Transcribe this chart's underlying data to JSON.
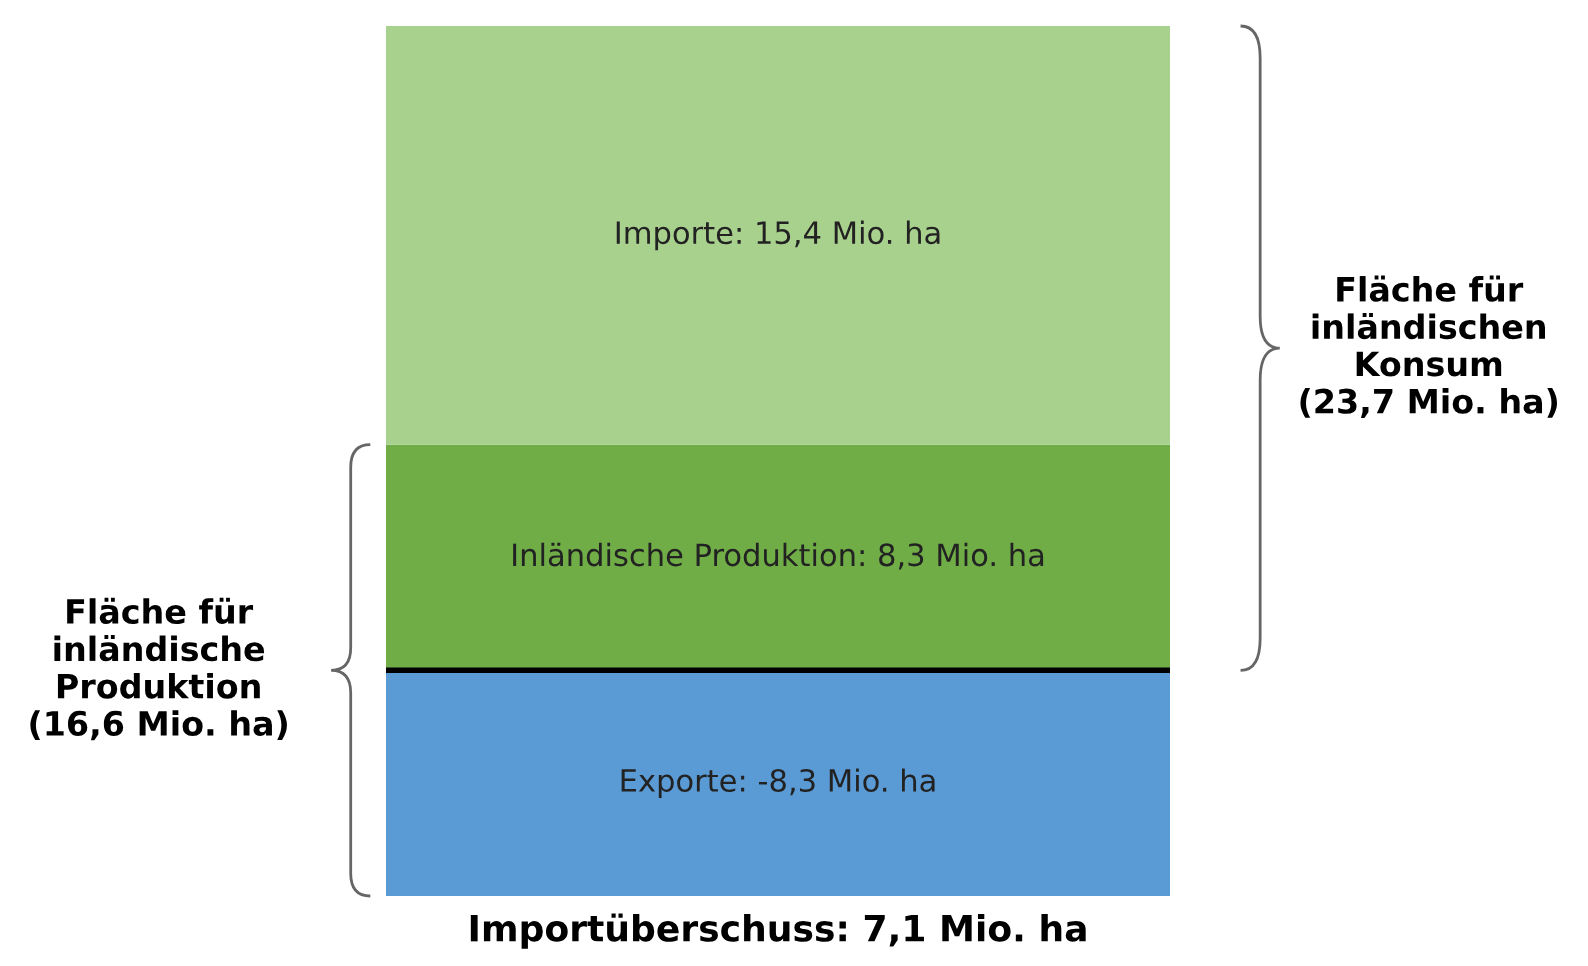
{
  "chart_data": {
    "type": "bar",
    "stacked": true,
    "categories": [
      null
    ],
    "series": [
      {
        "color": "#70ad47",
        "values": [
          8.3
        ],
        "value_labels": [
          "Inländische Produktion: 8,3 Mio. ha"
        ]
      },
      {
        "color": "#a9d18e",
        "values": [
          15.4
        ],
        "value_labels": [
          "Importe: 15,4 Mio. ha"
        ]
      },
      {
        "color": "#5b9bd5",
        "values": [
          -8.3
        ],
        "value_labels": [
          "Exporte: -8,3 Mio. ha"
        ]
      }
    ],
    "ref_lines": [
      {
        "axis": "y",
        "value": 0,
        "color": "#000000"
      }
    ],
    "annotations": [
      {
        "text": "Fläche für\ninländischen\nKonsum\n(23,7 Mio. ha)"
      },
      {
        "text": "Fläche für\ninländische\nProduktion\n(16,6 Mio. ha)"
      },
      {
        "text": "Importüberschuss: 7,1 Mio. ha"
      }
    ],
    "legend": false
  }
}
